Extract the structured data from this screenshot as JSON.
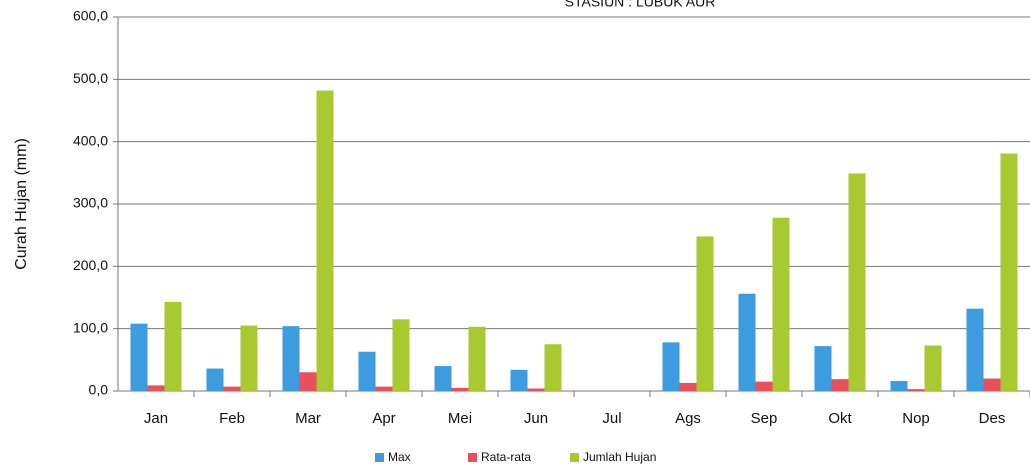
{
  "chart_data": {
    "type": "bar",
    "title": "STASIUN : LUBUK AUR",
    "y_label": "Curah Hujan (mm)",
    "categories": [
      "Jan",
      "Feb",
      "Mar",
      "Apr",
      "Mei",
      "Jun",
      "Jul",
      "Ags",
      "Sep",
      "Okt",
      "Nop",
      "Des"
    ],
    "series": [
      {
        "name": "Max",
        "color": "#3d9be0",
        "values": [
          108,
          36,
          104,
          63,
          40,
          34,
          0,
          78,
          156,
          72,
          16,
          132
        ]
      },
      {
        "name": "Rata-rata",
        "color": "#e8505e",
        "values": [
          9,
          7,
          30,
          7,
          5,
          4,
          0,
          13,
          15,
          19,
          3,
          20
        ]
      },
      {
        "name": "Jumlah Hujan",
        "color": "#a8c930",
        "values": [
          143,
          105,
          482,
          115,
          103,
          75,
          0,
          248,
          278,
          349,
          73,
          381
        ]
      }
    ],
    "ylim": [
      0,
      600
    ],
    "yticks": [
      {
        "value": 0,
        "label": "0,0"
      },
      {
        "value": 100,
        "label": "100,0"
      },
      {
        "value": 200,
        "label": "200,0"
      },
      {
        "value": 300,
        "label": "300,0"
      },
      {
        "value": 400,
        "label": "400,0"
      },
      {
        "value": 500,
        "label": "500,0"
      },
      {
        "value": 600,
        "label": "600,0"
      }
    ],
    "grid": true,
    "legend": "bottom"
  }
}
